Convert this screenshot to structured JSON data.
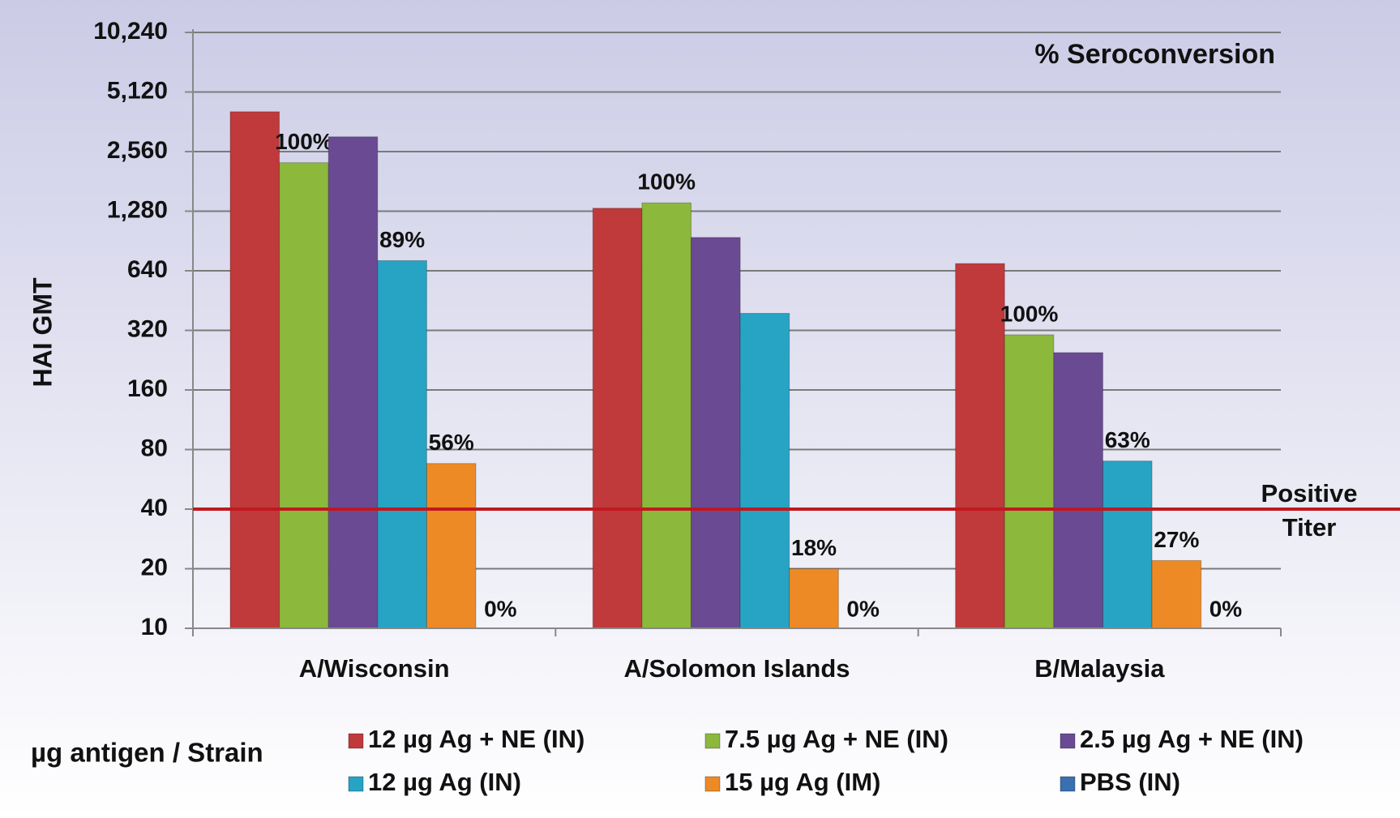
{
  "chart_data": {
    "type": "bar",
    "title": "% Seroconversion",
    "y_label": "HAI GMT",
    "legend_title": "µg antigen / Strain",
    "log_scale": true,
    "log_base": 2,
    "grid": true,
    "categories": [
      "A/Wisconsin",
      "A/Solomon Islands",
      "B/Malaysia"
    ],
    "ylim": [
      10,
      10240
    ],
    "yticks": [
      10,
      20,
      40,
      80,
      160,
      320,
      640,
      {
        "value": 1280,
        "label": "1,280"
      },
      {
        "value": 2560,
        "label": "2,560"
      },
      {
        "value": 5120,
        "label": "5,120"
      },
      {
        "value": 10240,
        "label": "10,240"
      }
    ],
    "reference_line": {
      "value": 40,
      "label": [
        "Positive",
        "Titer"
      ],
      "color": "#c0181f"
    },
    "series": [
      {
        "name": "12 µg Ag + NE (IN)",
        "color": "#c0393b",
        "values": [
          4070,
          1325,
          696
        ],
        "seroconversion": [
          null,
          null,
          null
        ]
      },
      {
        "name": "7.5 µg Ag + NE (IN)",
        "color": "#8cb83c",
        "values": [
          2250,
          1410,
          304
        ],
        "seroconversion": [
          "100%",
          "100%",
          "100%"
        ]
      },
      {
        "name": "2.5 µg Ag + NE (IN)",
        "color": "#6b4a94",
        "values": [
          3040,
          943,
          247
        ],
        "seroconversion": [
          null,
          null,
          null
        ]
      },
      {
        "name": "12 µg Ag (IN)",
        "color": "#27a3c4",
        "values": [
          720,
          390,
          70
        ],
        "seroconversion": [
          "89%",
          null,
          "63%"
        ]
      },
      {
        "name": "15 µg Ag (IM)",
        "color": "#ee8a25",
        "values": [
          68,
          20,
          22
        ],
        "seroconversion": [
          "56%",
          "18%",
          "27%"
        ]
      },
      {
        "name": "PBS (IN)",
        "color": "#3a6fb0",
        "values": [
          10,
          10,
          10
        ],
        "seroconversion": [
          "0%",
          "0%",
          "0%"
        ]
      }
    ]
  }
}
